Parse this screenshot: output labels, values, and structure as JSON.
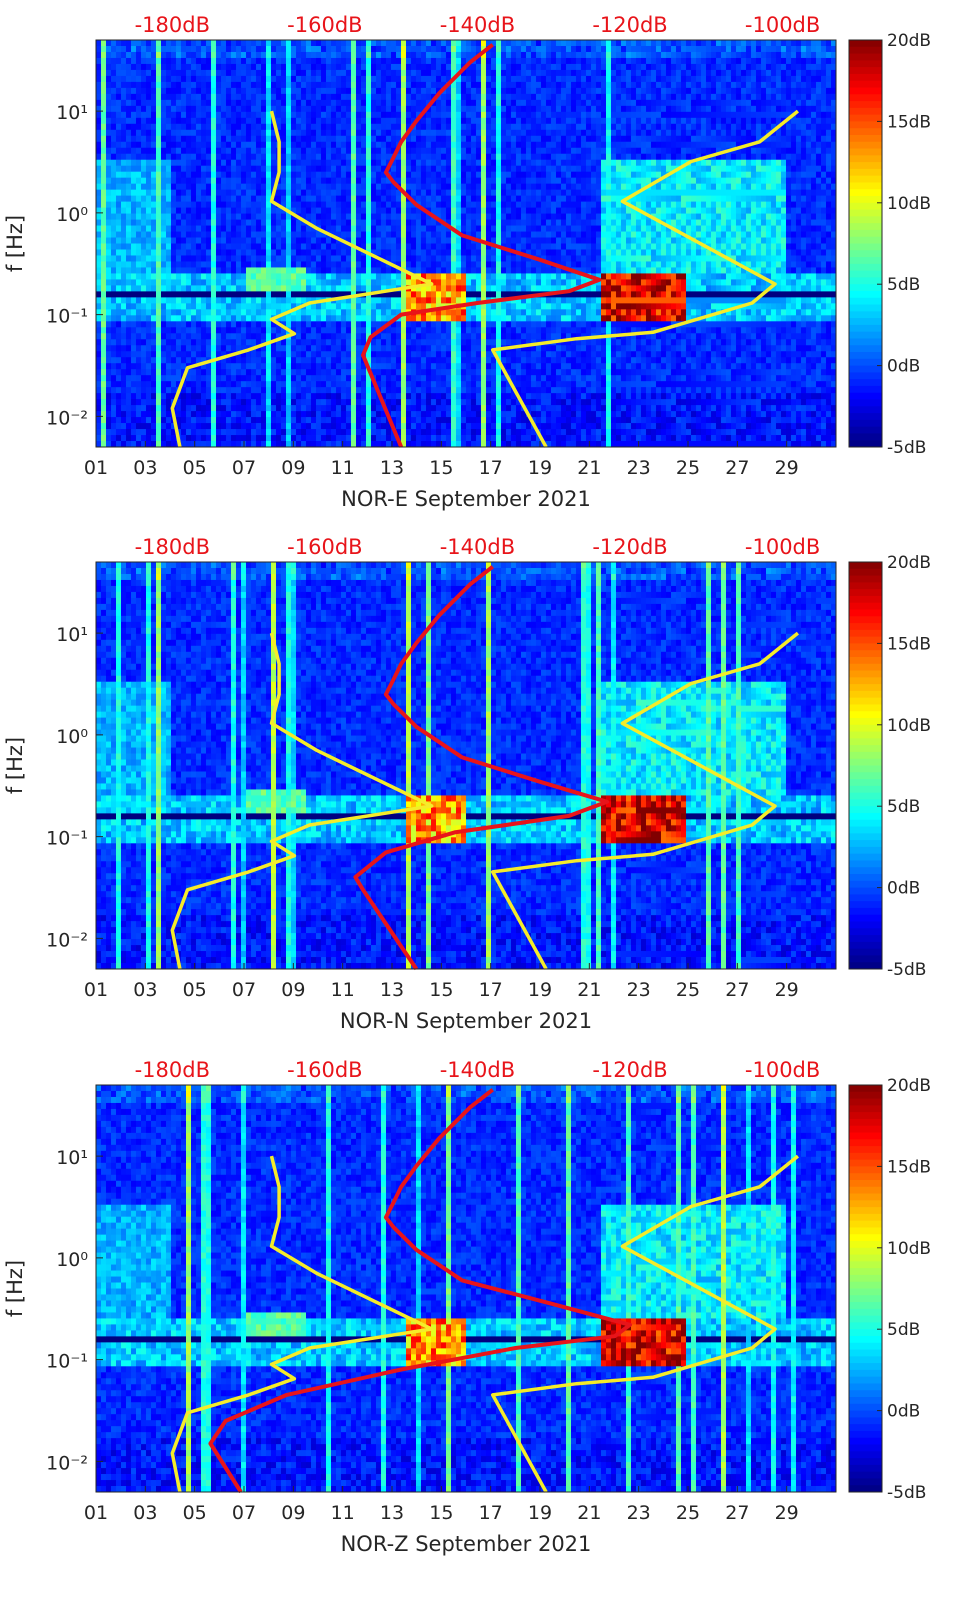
{
  "colors": {
    "spectrogram_low": "#00008f",
    "spectrogram_high": "#800000",
    "psd_curve_red": "#e8141a",
    "noise_model_yellow": "#f5ec2a",
    "db_label_red": "#e8141a",
    "axis_text": "#262626"
  },
  "colorscale": "jet",
  "chart_data": [
    {
      "type": "heatmap",
      "xlabel": "NOR-E September 2021",
      "ylabel": "f [Hz]",
      "y_scale": "log",
      "ylim": [
        0.005,
        50
      ],
      "xlim": [
        1,
        31
      ],
      "x_ticks": [
        "01",
        "03",
        "05",
        "07",
        "09",
        "11",
        "13",
        "15",
        "17",
        "19",
        "21",
        "23",
        "25",
        "27",
        "29"
      ],
      "y_ticks": [
        {
          "value": 0.01,
          "label": "10⁻²"
        },
        {
          "value": 0.1,
          "label": "10⁻¹"
        },
        {
          "value": 1,
          "label": "10⁰"
        },
        {
          "value": 10,
          "label": "10¹"
        }
      ],
      "top_axis_ticks": [
        "-180dB",
        "-160dB",
        "-140dB",
        "-120dB",
        "-100dB"
      ],
      "top_axis_range_db": [
        -190,
        -93
      ],
      "colorbar": {
        "range": [
          -5,
          20
        ],
        "ticks": [
          "20dB",
          "15dB",
          "10dB",
          "5dB",
          "0dB",
          "-5dB"
        ]
      },
      "overlay_series": [
        {
          "color": "red",
          "points_db_f": [
            [
              -150,
              0.005
            ],
            [
              -155,
              0.04
            ],
            [
              -154,
              0.06
            ],
            [
              -150,
              0.1
            ],
            [
              -140,
              0.13
            ],
            [
              -128,
              0.17
            ],
            [
              -124,
              0.22
            ],
            [
              -132,
              0.35
            ],
            [
              -142,
              0.6
            ],
            [
              -148,
              1.2
            ],
            [
              -151,
              2
            ],
            [
              -152,
              2.5
            ],
            [
              -151,
              3.5
            ],
            [
              -150,
              5
            ],
            [
              -148,
              8
            ],
            [
              -145,
              15
            ],
            [
              -141,
              30
            ],
            [
              -138,
              45
            ]
          ]
        },
        {
          "color": "yellow",
          "points_db_f": [
            [
              -179,
              0.005
            ],
            [
              -180,
              0.012
            ],
            [
              -178,
              0.03
            ],
            [
              -170,
              0.045
            ],
            [
              -164,
              0.065
            ],
            [
              -167,
              0.09
            ],
            [
              -162,
              0.13
            ],
            [
              -146,
              0.2
            ],
            [
              -161,
              0.7
            ],
            [
              -167,
              1.3
            ],
            [
              -166,
              2.5
            ],
            [
              -166,
              5
            ],
            [
              -167,
              10
            ]
          ]
        },
        {
          "color": "yellow",
          "points_db_f": [
            [
              -131,
              0.005
            ],
            [
              -138,
              0.045
            ],
            [
              -127,
              0.058
            ],
            [
              -117,
              0.067
            ],
            [
              -104,
              0.13
            ],
            [
              -101,
              0.2
            ],
            [
              -121,
              1.3
            ],
            [
              -112,
              3.2
            ],
            [
              -103,
              5
            ],
            [
              -98,
              10
            ]
          ]
        }
      ]
    },
    {
      "type": "heatmap",
      "xlabel": "NOR-N September 2021",
      "ylabel": "f [Hz]",
      "y_scale": "log",
      "ylim": [
        0.005,
        50
      ],
      "xlim": [
        1,
        31
      ],
      "x_ticks": [
        "01",
        "03",
        "05",
        "07",
        "09",
        "11",
        "13",
        "15",
        "17",
        "19",
        "21",
        "23",
        "25",
        "27",
        "29"
      ],
      "y_ticks": [
        {
          "value": 0.01,
          "label": "10⁻²"
        },
        {
          "value": 0.1,
          "label": "10⁻¹"
        },
        {
          "value": 1,
          "label": "10⁰"
        },
        {
          "value": 10,
          "label": "10¹"
        }
      ],
      "top_axis_ticks": [
        "-180dB",
        "-160dB",
        "-140dB",
        "-120dB",
        "-100dB"
      ],
      "top_axis_range_db": [
        -190,
        -93
      ],
      "colorbar": {
        "range": [
          -5,
          20
        ],
        "ticks": [
          "20dB",
          "15dB",
          "10dB",
          "5dB",
          "0dB",
          "-5dB"
        ]
      },
      "overlay_series": [
        {
          "color": "red",
          "points_db_f": [
            [
              -148,
              0.005
            ],
            [
              -155,
              0.03
            ],
            [
              -156,
              0.04
            ],
            [
              -152,
              0.07
            ],
            [
              -143,
              0.11
            ],
            [
              -128,
              0.16
            ],
            [
              -123,
              0.22
            ],
            [
              -132,
              0.35
            ],
            [
              -142,
              0.6
            ],
            [
              -148,
              1.2
            ],
            [
              -151,
              2
            ],
            [
              -152,
              2.5
            ],
            [
              -151,
              3.5
            ],
            [
              -150,
              5
            ],
            [
              -148,
              8
            ],
            [
              -145,
              15
            ],
            [
              -141,
              30
            ],
            [
              -138,
              45
            ]
          ]
        },
        {
          "color": "yellow",
          "points_db_f": [
            [
              -179,
              0.005
            ],
            [
              -180,
              0.012
            ],
            [
              -178,
              0.03
            ],
            [
              -170,
              0.045
            ],
            [
              -164,
              0.065
            ],
            [
              -167,
              0.09
            ],
            [
              -162,
              0.13
            ],
            [
              -146,
              0.2
            ],
            [
              -161,
              0.7
            ],
            [
              -167,
              1.3
            ],
            [
              -166,
              2.5
            ],
            [
              -166,
              5
            ],
            [
              -167,
              10
            ]
          ]
        },
        {
          "color": "yellow",
          "points_db_f": [
            [
              -131,
              0.005
            ],
            [
              -138,
              0.045
            ],
            [
              -127,
              0.058
            ],
            [
              -117,
              0.067
            ],
            [
              -104,
              0.13
            ],
            [
              -101,
              0.2
            ],
            [
              -121,
              1.3
            ],
            [
              -112,
              3.2
            ],
            [
              -103,
              5
            ],
            [
              -98,
              10
            ]
          ]
        }
      ]
    },
    {
      "type": "heatmap",
      "xlabel": "NOR-Z September 2021",
      "ylabel": "f [Hz]",
      "y_scale": "log",
      "ylim": [
        0.005,
        50
      ],
      "xlim": [
        1,
        31
      ],
      "x_ticks": [
        "01",
        "03",
        "05",
        "07",
        "09",
        "11",
        "13",
        "15",
        "17",
        "19",
        "21",
        "23",
        "25",
        "27",
        "29"
      ],
      "y_ticks": [
        {
          "value": 0.01,
          "label": "10⁻²"
        },
        {
          "value": 0.1,
          "label": "10⁻¹"
        },
        {
          "value": 1,
          "label": "10⁰"
        },
        {
          "value": 10,
          "label": "10¹"
        }
      ],
      "top_axis_ticks": [
        "-180dB",
        "-160dB",
        "-140dB",
        "-120dB",
        "-100dB"
      ],
      "top_axis_range_db": [
        -190,
        -93
      ],
      "colorbar": {
        "range": [
          -5,
          20
        ],
        "ticks": [
          "20dB",
          "15dB",
          "10dB",
          "5dB",
          "0dB",
          "-5dB"
        ]
      },
      "overlay_series": [
        {
          "color": "red",
          "points_db_f": [
            [
              -171,
              0.005
            ],
            [
              -175,
              0.015
            ],
            [
              -173,
              0.025
            ],
            [
              -165,
              0.045
            ],
            [
              -150,
              0.08
            ],
            [
              -135,
              0.13
            ],
            [
              -122,
              0.17
            ],
            [
              -120,
              0.22
            ],
            [
              -130,
              0.35
            ],
            [
              -142,
              0.6
            ],
            [
              -148,
              1.2
            ],
            [
              -151,
              2
            ],
            [
              -152,
              2.5
            ],
            [
              -151,
              3.5
            ],
            [
              -150,
              5
            ],
            [
              -148,
              8
            ],
            [
              -145,
              15
            ],
            [
              -141,
              30
            ],
            [
              -138,
              45
            ]
          ]
        },
        {
          "color": "yellow",
          "points_db_f": [
            [
              -179,
              0.005
            ],
            [
              -180,
              0.012
            ],
            [
              -178,
              0.03
            ],
            [
              -170,
              0.045
            ],
            [
              -164,
              0.065
            ],
            [
              -167,
              0.09
            ],
            [
              -162,
              0.13
            ],
            [
              -146,
              0.2
            ],
            [
              -161,
              0.7
            ],
            [
              -167,
              1.3
            ],
            [
              -166,
              2.5
            ],
            [
              -166,
              5
            ],
            [
              -167,
              10
            ]
          ]
        },
        {
          "color": "yellow",
          "points_db_f": [
            [
              -131,
              0.005
            ],
            [
              -138,
              0.045
            ],
            [
              -127,
              0.058
            ],
            [
              -117,
              0.067
            ],
            [
              -104,
              0.13
            ],
            [
              -101,
              0.2
            ],
            [
              -121,
              1.3
            ],
            [
              -112,
              3.2
            ],
            [
              -103,
              5
            ],
            [
              -98,
              10
            ]
          ]
        }
      ]
    }
  ]
}
